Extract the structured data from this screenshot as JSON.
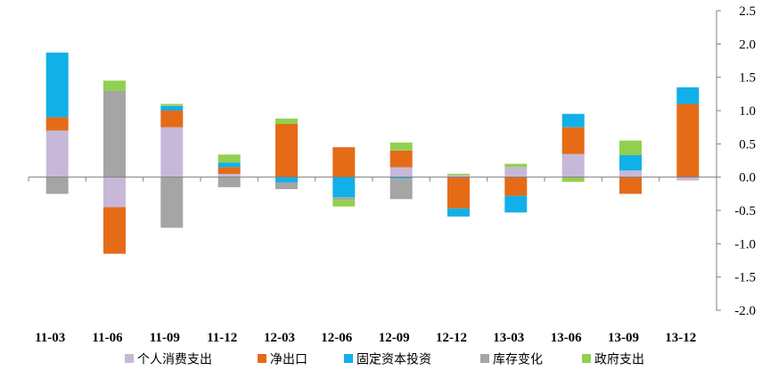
{
  "chart_data": {
    "type": "bar",
    "stacked": true,
    "title": "",
    "xlabel": "",
    "ylabel": "",
    "ylim": [
      -2.0,
      2.5
    ],
    "yticks": [
      "2.5",
      "2.0",
      "1.5",
      "1.0",
      "0.5",
      "0.0",
      "-0.5",
      "-1.0",
      "-1.5",
      "-2.0"
    ],
    "ytick_values": [
      2.5,
      2.0,
      1.5,
      1.0,
      0.5,
      0.0,
      -0.5,
      -1.0,
      -1.5,
      -2.0
    ],
    "y_axis_side": "right",
    "grid": false,
    "legend_position": "bottom",
    "categories": [
      "11-03",
      "11-06",
      "11-09",
      "11-12",
      "12-03",
      "12-06",
      "12-09",
      "12-12",
      "13-03",
      "13-06",
      "13-09",
      "13-12"
    ],
    "series": [
      {
        "name": "个人消费支出",
        "color": "#C7B8D9",
        "values": [
          0.7,
          -0.45,
          0.75,
          0.05,
          0.0,
          0.0,
          0.15,
          0.03,
          0.15,
          0.35,
          0.1,
          -0.05
        ]
      },
      {
        "name": "净出口",
        "color": "#E56B17",
        "values": [
          0.2,
          -0.7,
          0.25,
          0.1,
          0.8,
          0.45,
          0.25,
          -0.47,
          -0.28,
          0.4,
          -0.25,
          1.1
        ]
      },
      {
        "name": "固定资本投资",
        "color": "#12B0E8",
        "values": [
          0.97,
          0.0,
          0.07,
          0.07,
          -0.08,
          -0.3,
          -0.02,
          -0.12,
          -0.25,
          0.2,
          0.23,
          0.25
        ]
      },
      {
        "name": "库存变化",
        "color": "#A5A5A5",
        "values": [
          -0.25,
          1.3,
          -0.76,
          -0.15,
          -0.1,
          -0.04,
          -0.31,
          0.0,
          0.0,
          0.0,
          0.0,
          0.0
        ]
      },
      {
        "name": "政府支出",
        "color": "#92D050",
        "values": [
          0.0,
          0.15,
          0.03,
          0.12,
          0.08,
          -0.1,
          0.12,
          0.02,
          0.05,
          -0.07,
          0.22,
          0.0
        ]
      }
    ]
  }
}
